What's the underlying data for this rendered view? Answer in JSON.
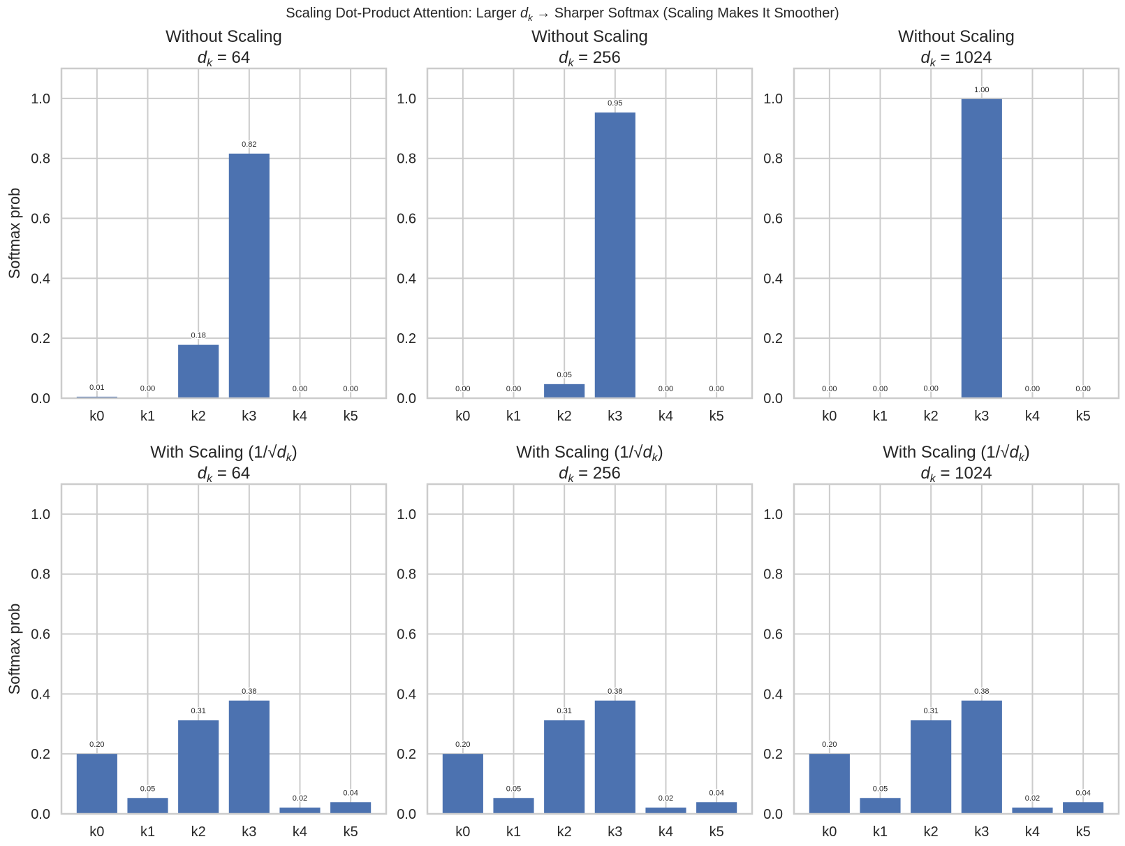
{
  "chart_data": {
    "type": "bar",
    "suptitle": "Scaling Dot-Product Attention: Larger d_k → Sharper Softmax (Scaling Makes It Smoother)",
    "suptitle_parts": {
      "pre": "Scaling Dot-Product Attention: Larger ",
      "post": " → Sharper Softmax (Scaling Makes It Smoother)"
    },
    "bar_color": "#4c72b0",
    "grid": true,
    "ylabel": "Softmax prob",
    "ylim": [
      0,
      1.1
    ],
    "yticks": [
      0.0,
      0.2,
      0.4,
      0.6,
      0.8,
      1.0
    ],
    "ytick_labels": [
      "0.0",
      "0.2",
      "0.4",
      "0.6",
      "0.8",
      "1.0"
    ],
    "categories": [
      "k0",
      "k1",
      "k2",
      "k3",
      "k4",
      "k5"
    ],
    "panels": [
      {
        "row": 0,
        "col": 0,
        "title": "Without Scaling",
        "scaled": false,
        "dk": "64",
        "values": [
          0.005,
          0.001,
          0.178,
          0.816,
          0.0003,
          0.0002
        ],
        "labels": [
          "0.01",
          "0.00",
          "0.18",
          "0.82",
          "0.00",
          "0.00"
        ]
      },
      {
        "row": 0,
        "col": 1,
        "title": "Without Scaling",
        "scaled": false,
        "dk": "256",
        "values": [
          0.0002,
          0.0001,
          0.047,
          0.953,
          0.0001,
          0.0001
        ],
        "labels": [
          "0.00",
          "0.00",
          "0.05",
          "0.95",
          "0.00",
          "0.00"
        ]
      },
      {
        "row": 0,
        "col": 2,
        "title": "Without Scaling",
        "scaled": false,
        "dk": "1024",
        "values": [
          0.0,
          0.0,
          0.001,
          0.998,
          0.0,
          0.0
        ],
        "labels": [
          "0.00",
          "0.00",
          "0.00",
          "1.00",
          "0.00",
          "0.00"
        ]
      },
      {
        "row": 1,
        "col": 0,
        "title": "With Scaling",
        "scaled": true,
        "dk": "64",
        "values": [
          0.2,
          0.053,
          0.312,
          0.378,
          0.021,
          0.039
        ],
        "labels": [
          "0.20",
          "0.05",
          "0.31",
          "0.38",
          "0.02",
          "0.04"
        ]
      },
      {
        "row": 1,
        "col": 1,
        "title": "With Scaling",
        "scaled": true,
        "dk": "256",
        "values": [
          0.2,
          0.053,
          0.312,
          0.378,
          0.021,
          0.039
        ],
        "labels": [
          "0.20",
          "0.05",
          "0.31",
          "0.38",
          "0.02",
          "0.04"
        ]
      },
      {
        "row": 1,
        "col": 2,
        "title": "With Scaling",
        "scaled": true,
        "dk": "1024",
        "values": [
          0.2,
          0.053,
          0.312,
          0.378,
          0.021,
          0.039
        ],
        "labels": [
          "0.20",
          "0.05",
          "0.31",
          "0.38",
          "0.02",
          "0.04"
        ]
      }
    ]
  }
}
